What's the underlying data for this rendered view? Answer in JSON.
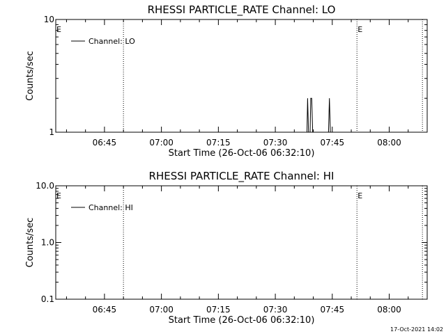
{
  "footer_timestamp": "17-Oct-2021 14:02",
  "chart_data": [
    {
      "type": "line",
      "title": "RHESSI PARTICLE_RATE Channel: LO",
      "xlabel": "Start Time (26-Oct-06 06:32:10)",
      "ylabel": "Counts/sec",
      "yscale": "log",
      "xlim": [
        "06:32:10",
        "08:10:00"
      ],
      "ylim": [
        1,
        10
      ],
      "x_ticks": [
        "06:45",
        "07:00",
        "07:15",
        "07:30",
        "07:45",
        "08:00"
      ],
      "y_ticks": [
        {
          "value": 1,
          "label": "1"
        },
        {
          "value": 10,
          "label": "10"
        }
      ],
      "legend": {
        "label": "Channel: LO",
        "placement": "top-left"
      },
      "event_lines": [
        {
          "time": "06:32:10",
          "label": "E"
        },
        {
          "time": "06:50:00",
          "label": ""
        },
        {
          "time": "07:51:30",
          "label": "E"
        },
        {
          "time": "08:08:45",
          "label": ""
        }
      ],
      "series": [
        {
          "points": [
            {
              "x": "07:38:20",
              "y": 1
            },
            {
              "x": "07:38:30",
              "y": 2
            },
            {
              "x": "07:38:45",
              "y": 1
            },
            {
              "x": "07:39:10",
              "y": 1
            },
            {
              "x": "07:39:20",
              "y": 2
            },
            {
              "x": "07:39:35",
              "y": 2
            },
            {
              "x": "07:39:50",
              "y": 1
            },
            {
              "x": "07:44:00",
              "y": 1
            },
            {
              "x": "07:44:15",
              "y": 2
            },
            {
              "x": "07:44:30",
              "y": 1
            }
          ]
        }
      ]
    },
    {
      "type": "line",
      "title": "RHESSI PARTICLE_RATE Channel: HI",
      "xlabel": "Start Time (26-Oct-06 06:32:10)",
      "ylabel": "Counts/sec",
      "yscale": "log",
      "xlim": [
        "06:32:10",
        "08:10:00"
      ],
      "ylim": [
        0.1,
        10
      ],
      "x_ticks": [
        "06:45",
        "07:00",
        "07:15",
        "07:30",
        "07:45",
        "08:00"
      ],
      "y_ticks": [
        {
          "value": 0.1,
          "label": "0.1"
        },
        {
          "value": 1,
          "label": "1.0"
        },
        {
          "value": 10,
          "label": "10.0"
        }
      ],
      "legend": {
        "label": "Channel: HI",
        "placement": "top-left"
      },
      "event_lines": [
        {
          "time": "06:32:10",
          "label": "E"
        },
        {
          "time": "06:50:00",
          "label": ""
        },
        {
          "time": "07:51:30",
          "label": "E"
        },
        {
          "time": "08:08:45",
          "label": ""
        }
      ],
      "series": [
        {
          "points": []
        }
      ]
    }
  ]
}
